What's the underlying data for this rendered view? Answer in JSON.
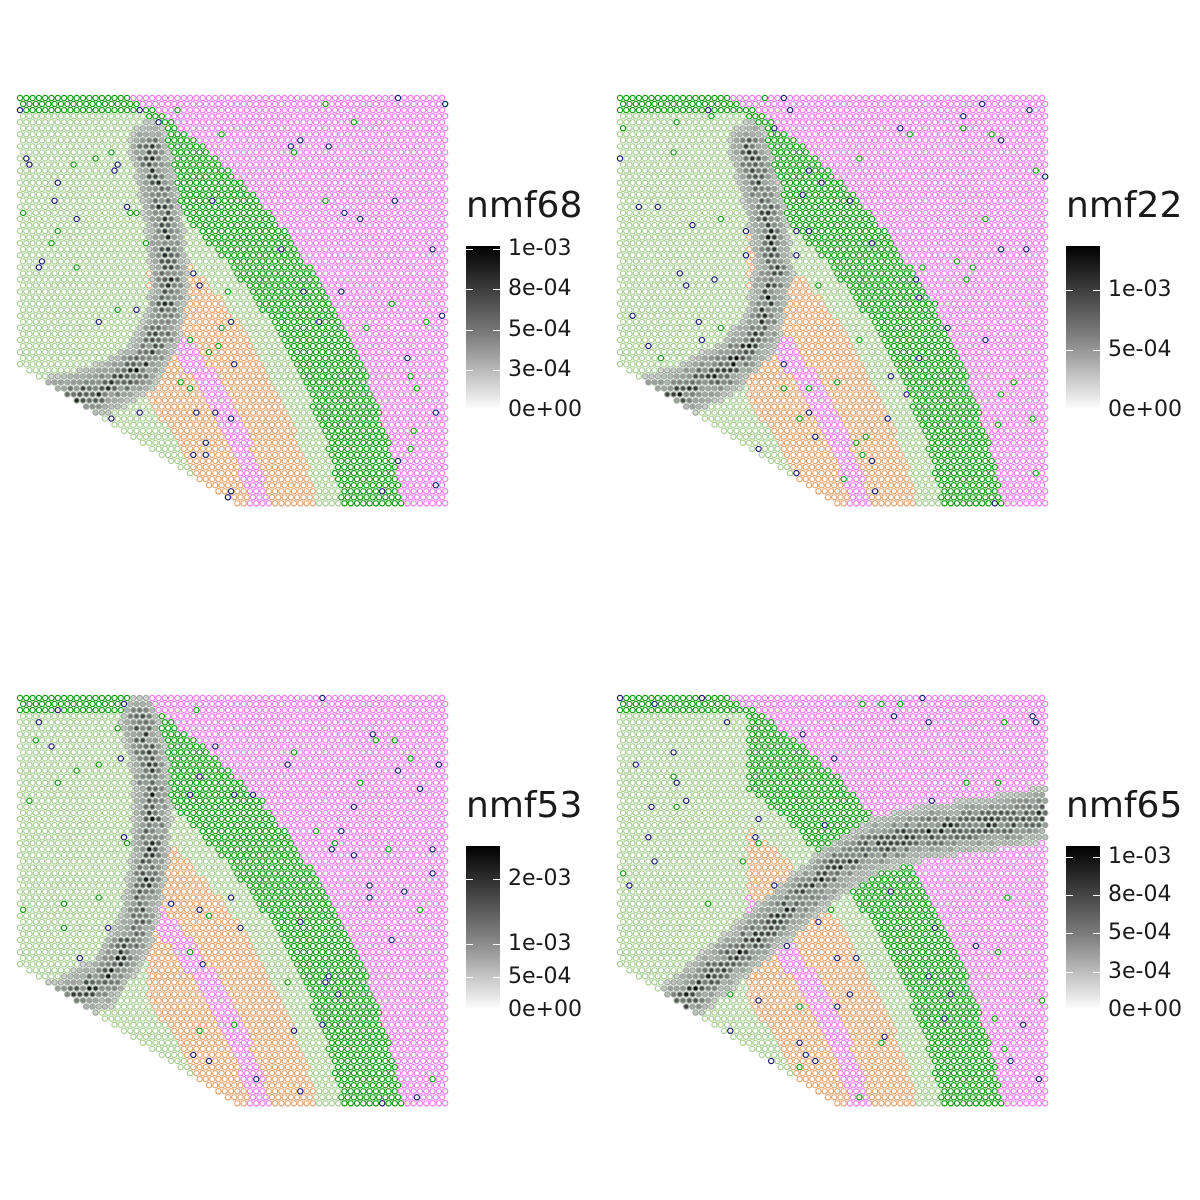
{
  "colors": {
    "pink": "#f07cf0",
    "lightgreen": "#a9cf93",
    "green": "#109a10",
    "orange": "#e6a46f",
    "navy": "#1a1a6b",
    "gray": "#9aa99a"
  },
  "chart_data": [
    {
      "type": "scatter",
      "title": "nmf68",
      "legend": {
        "title": "nmf68",
        "ticks": [
          "1e-03",
          "8e-04",
          "5e-04",
          "3e-04",
          "0e+00"
        ],
        "tick_values": [
          0.001,
          0.00075,
          0.0005,
          0.00025,
          0
        ],
        "max": 0.00102
      },
      "series": [
        {
          "region": "upper-left vertical band",
          "path": [
            [
              30,
              -8
            ],
            [
              32,
              -14
            ],
            [
              34,
              -22
            ],
            [
              35,
              -30
            ],
            [
              33,
              -38
            ],
            [
              28,
              -44
            ],
            [
              18,
              -48
            ],
            [
              6,
              -50
            ],
            [
              0,
              -50
            ]
          ],
          "peak": 0.001
        }
      ]
    },
    {
      "type": "scatter",
      "title": "nmf22",
      "legend": {
        "title": "nmf22",
        "ticks": [
          "1e-03",
          "5e-04",
          "0e+00"
        ],
        "tick_values": [
          0.001,
          0.0005,
          0
        ],
        "max": 0.00137
      },
      "series": [
        {
          "region": "left vertical band and dark green layer",
          "path": [
            [
              30,
              -8
            ],
            [
              34,
              -18
            ],
            [
              36,
              -28
            ],
            [
              33,
              -38
            ],
            [
              25,
              -44
            ],
            [
              14,
              -48
            ],
            [
              4,
              -50
            ]
          ],
          "peak": 0.00137
        }
      ]
    },
    {
      "type": "scatter",
      "title": "nmf53",
      "legend": {
        "title": "nmf53",
        "ticks": [
          "2e-03",
          "1e-03",
          "5e-04",
          "0e+00"
        ],
        "tick_values": [
          0.002,
          0.001,
          0.0005,
          0
        ],
        "max": 0.0025
      },
      "series": [
        {
          "region": "upper-left band, strongest at top",
          "path": [
            [
              28,
              -4
            ],
            [
              30,
              -10
            ],
            [
              31,
              -18
            ],
            [
              30,
              -28
            ],
            [
              27,
              -38
            ],
            [
              20,
              -46
            ],
            [
              10,
              -50
            ],
            [
              0,
              -52
            ]
          ],
          "peak": 0.0025
        }
      ]
    },
    {
      "type": "scatter",
      "title": "nmf65",
      "legend": {
        "title": "nmf65",
        "ticks": [
          "1e-03",
          "8e-04",
          "5e-04",
          "3e-04",
          "0e+00"
        ],
        "tick_values": [
          0.001,
          0.00075,
          0.0005,
          0.00025,
          0
        ],
        "max": 0.00107
      },
      "series": [
        {
          "region": "upper edge of dark green layer",
          "path": [
            [
              10,
              -52
            ],
            [
              20,
              -46
            ],
            [
              30,
              -40
            ],
            [
              40,
              -34
            ],
            [
              50,
              -28
            ],
            [
              60,
              -24
            ],
            [
              70,
              -22
            ],
            [
              80,
              -21
            ],
            [
              90,
              -20
            ],
            [
              98,
              -19
            ]
          ],
          "peak": 0.00107
        }
      ]
    }
  ]
}
